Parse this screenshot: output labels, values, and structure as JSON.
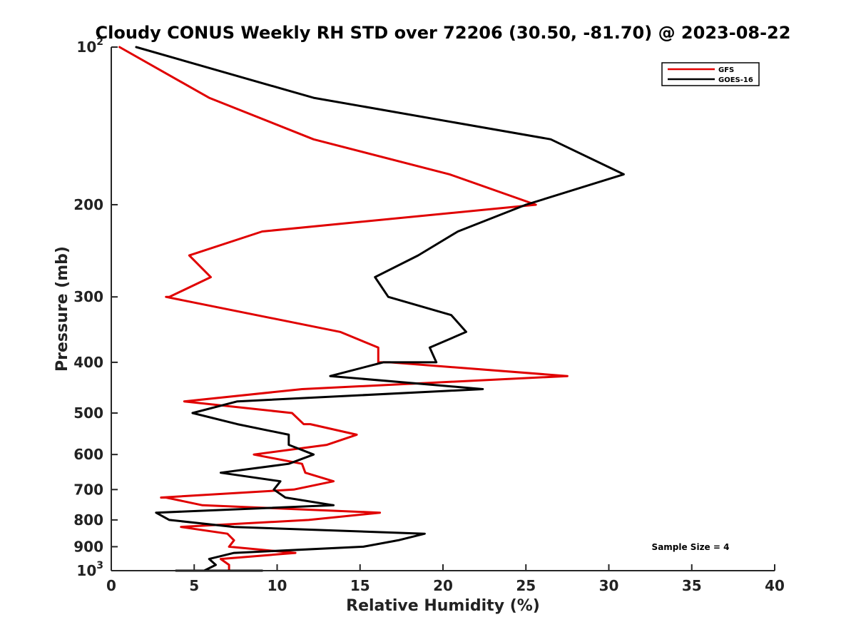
{
  "chart_data": {
    "type": "line",
    "title": "Cloudy CONUS Weekly RH STD over 72206 (30.50, -81.70) @ 2023-08-22",
    "xlabel": "Relative Humidity (%)",
    "ylabel": "Pressure (mb)",
    "xlim": [
      0,
      40
    ],
    "ylim": [
      100,
      1000
    ],
    "yscale": "log",
    "yreversed": true,
    "x_ticks": [
      0,
      5,
      10,
      15,
      20,
      25,
      30,
      35,
      40
    ],
    "y_ticks": [
      {
        "value": 100,
        "base": "10",
        "exp": "2"
      },
      {
        "value": 200,
        "label": "200"
      },
      {
        "value": 300,
        "label": "300"
      },
      {
        "value": 400,
        "label": "400"
      },
      {
        "value": 500,
        "label": "500"
      },
      {
        "value": 600,
        "label": "600"
      },
      {
        "value": 700,
        "label": "700"
      },
      {
        "value": 800,
        "label": "800"
      },
      {
        "value": 900,
        "label": "900"
      },
      {
        "value": 1000,
        "base": "10",
        "exp": "3"
      }
    ],
    "grid": false,
    "legend_position": "top-right",
    "series": [
      {
        "name": "GFS",
        "color": "#e00000",
        "points": [
          [
            0.5,
            100
          ],
          [
            5.9,
            125
          ],
          [
            12.2,
            150
          ],
          [
            20.4,
            175
          ],
          [
            25.6,
            200
          ],
          [
            9.1,
            225
          ],
          [
            4.7,
            250
          ],
          [
            6.0,
            275
          ],
          [
            3.5,
            300
          ],
          [
            3.3,
            300
          ],
          [
            13.8,
            350
          ],
          [
            16.1,
            375
          ],
          [
            16.1,
            400
          ],
          [
            16.8,
            400
          ],
          [
            27.5,
            425
          ],
          [
            11.5,
            450
          ],
          [
            4.4,
            475
          ],
          [
            10.9,
            500
          ],
          [
            11.6,
            525
          ],
          [
            12.0,
            525
          ],
          [
            14.8,
            550
          ],
          [
            13.0,
            575
          ],
          [
            8.6,
            600
          ],
          [
            11.5,
            625
          ],
          [
            11.7,
            650
          ],
          [
            13.4,
            675
          ],
          [
            11.0,
            700
          ],
          [
            3.0,
            725
          ],
          [
            3.3,
            725
          ],
          [
            5.5,
            750
          ],
          [
            16.2,
            775
          ],
          [
            11.9,
            800
          ],
          [
            4.2,
            825
          ],
          [
            7.0,
            850
          ],
          [
            7.4,
            875
          ],
          [
            7.1,
            900
          ],
          [
            11.1,
            925
          ],
          [
            6.6,
            950
          ],
          [
            7.1,
            975
          ],
          [
            7.1,
            1000
          ]
        ]
      },
      {
        "name": "GOES-16",
        "color": "#000000",
        "points": [
          [
            1.5,
            100
          ],
          [
            12.2,
            125
          ],
          [
            26.5,
            150
          ],
          [
            30.9,
            175
          ],
          [
            25.0,
            200
          ],
          [
            20.9,
            225
          ],
          [
            18.5,
            250
          ],
          [
            15.9,
            275
          ],
          [
            16.7,
            300
          ],
          [
            20.5,
            325
          ],
          [
            21.4,
            350
          ],
          [
            19.2,
            375
          ],
          [
            19.6,
            400
          ],
          [
            16.9,
            400
          ],
          [
            16.4,
            400
          ],
          [
            13.2,
            425
          ],
          [
            22.4,
            450
          ],
          [
            7.6,
            475
          ],
          [
            4.9,
            500
          ],
          [
            7.6,
            525
          ],
          [
            10.7,
            550
          ],
          [
            10.7,
            575
          ],
          [
            12.2,
            600
          ],
          [
            10.7,
            625
          ],
          [
            6.6,
            650
          ],
          [
            10.2,
            675
          ],
          [
            9.8,
            700
          ],
          [
            10.5,
            725
          ],
          [
            13.4,
            750
          ],
          [
            2.7,
            775
          ],
          [
            3.5,
            800
          ],
          [
            7.4,
            825
          ],
          [
            18.9,
            850
          ],
          [
            17.3,
            875
          ],
          [
            15.2,
            900
          ],
          [
            7.4,
            925
          ],
          [
            5.9,
            950
          ],
          [
            6.3,
            975
          ],
          [
            5.6,
            1000
          ],
          [
            5.8,
            1000
          ],
          [
            9.1,
            1000
          ],
          [
            3.9,
            1000
          ],
          [
            5.9,
            1000
          ]
        ]
      }
    ],
    "annotations": [
      {
        "text": "Sample Size = 4"
      }
    ]
  }
}
